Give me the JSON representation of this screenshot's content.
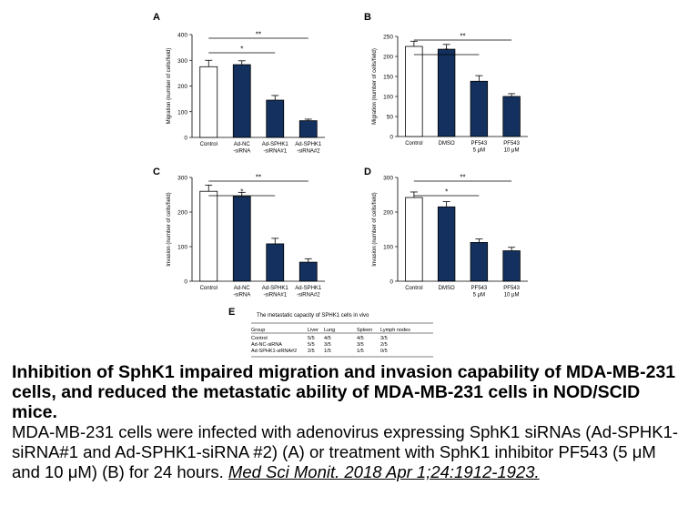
{
  "chart_data": [
    {
      "type": "bar",
      "panel": "A",
      "ylabel": "Migration (number of cells/field)",
      "ylim": [
        0,
        400
      ],
      "yticks": [
        0,
        100,
        200,
        300,
        400
      ],
      "categories": [
        "Control",
        "Ad-NC\n-siRNA",
        "Ad-SPHK1\n-siRNA#1",
        "Ad-SPHK1\n-siRNA#2"
      ],
      "values": [
        275,
        283,
        145,
        65
      ],
      "errors": [
        25,
        15,
        18,
        6
      ],
      "fill": [
        "#ffffff",
        "#13305e",
        "#13305e",
        "#13305e"
      ],
      "significance": [
        {
          "from": 0,
          "to": 2,
          "label": "*"
        },
        {
          "from": 0,
          "to": 3,
          "label": "**"
        }
      ]
    },
    {
      "type": "bar",
      "panel": "B",
      "ylabel": "Migration (number of cells/field)",
      "ylim": [
        0,
        250
      ],
      "yticks": [
        0,
        50,
        100,
        150,
        200,
        250
      ],
      "categories": [
        "Control",
        "DMSO",
        "PF543\n5 μM",
        "PF543\n10 μM"
      ],
      "values": [
        225,
        218,
        138,
        100
      ],
      "errors": [
        13,
        12,
        14,
        7
      ],
      "fill": [
        "#ffffff",
        "#13305e",
        "#13305e",
        "#13305e"
      ],
      "significance": [
        {
          "from": 0,
          "to": 2,
          "label": "*"
        },
        {
          "from": 0,
          "to": 3,
          "label": "**"
        }
      ]
    },
    {
      "type": "bar",
      "panel": "C",
      "ylabel": "Invasion (number of cells/field)",
      "ylim": [
        0,
        300
      ],
      "yticks": [
        0,
        100,
        200,
        300
      ],
      "categories": [
        "Control",
        "Ad-NC\n-siRNA",
        "Ad-SPHK1\n-siRNA#1",
        "Ad-SPHK1\n-siRNA#2"
      ],
      "values": [
        260,
        245,
        108,
        55
      ],
      "errors": [
        18,
        12,
        16,
        10
      ],
      "fill": [
        "#ffffff",
        "#13305e",
        "#13305e",
        "#13305e"
      ],
      "significance": [
        {
          "from": 0,
          "to": 2,
          "label": "*"
        },
        {
          "from": 0,
          "to": 3,
          "label": "**"
        }
      ]
    },
    {
      "type": "bar",
      "panel": "D",
      "ylabel": "Invasion (number of cells/field)",
      "ylim": [
        0,
        300
      ],
      "yticks": [
        0,
        100,
        200,
        300
      ],
      "categories": [
        "Control",
        "DMSO",
        "PF543\n5 μM",
        "PF543\n10 μM"
      ],
      "values": [
        242,
        215,
        112,
        88
      ],
      "errors": [
        16,
        15,
        10,
        10
      ],
      "fill": [
        "#ffffff",
        "#13305e",
        "#13305e",
        "#13305e"
      ],
      "significance": [
        {
          "from": 0,
          "to": 2,
          "label": "*"
        },
        {
          "from": 0,
          "to": 3,
          "label": "**"
        }
      ]
    },
    {
      "type": "table",
      "panel": "E",
      "title": "The metastatic capacity of SPHK1 cells in vivo",
      "columns": [
        "Group",
        "Liver",
        "Lung",
        "Spleen",
        "Lymph nodes"
      ],
      "rows": [
        [
          "Control",
          "5/5",
          "4/5",
          "4/5",
          "3/5"
        ],
        [
          "Ad-NC-siRNA",
          "5/5",
          "3/5",
          "3/5",
          "2/5"
        ],
        [
          "Ad-SPHK1-siRNA#2",
          "2/5",
          "1/5",
          "1/5",
          "0/5"
        ]
      ]
    }
  ],
  "caption": {
    "title": "Inhibition of SphK1 impaired migration and invasion capability of MDA-MB-231 cells, and reduced the metastatic ability of MDA-MB-231 cells in NOD/SCID mice.",
    "body": "MDA-MB-231 cells were infected with adenovirus expressing SphK1 siRNAs (Ad-SPHK1-siRNA#1 and Ad-SPHK1-siRNA #2) (A) or treatment with SphK1 inhibitor PF543 (5 μM and 10 μM) (B) for 24 hours. ",
    "citation": "Med Sci Monit. 2018 Apr 1;24:1912-1923."
  }
}
